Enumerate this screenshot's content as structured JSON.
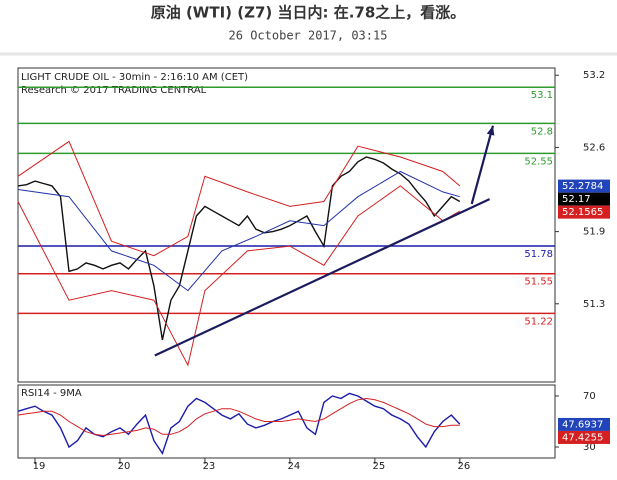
{
  "chart_data": [
    {
      "type": "line",
      "title": "原油 (WTI) (Z7) 当日内: 在.78之上，看涨。",
      "subtitle": "26 October 2017, 03:15",
      "labels": [
        "LIGHT CRUDE OIL - 30min - 2:16:10 AM (CET)",
        "Research © 2017 TRADING CENTRAL"
      ],
      "x": [
        -0.2,
        -0.1,
        0,
        0.1,
        0.2,
        0.3,
        0.4,
        0.5,
        0.6,
        0.7,
        0.8,
        0.9,
        1,
        1.1,
        1.2,
        1.3,
        1.4,
        1.5,
        1.6,
        1.7,
        1.8,
        1.9,
        2,
        2.1,
        2.2,
        2.3,
        2.4,
        2.5,
        2.6,
        2.7,
        2.8,
        2.9,
        3,
        3.1,
        3.2,
        3.3,
        3.4,
        3.5,
        3.6,
        3.7,
        3.8,
        3.9,
        4,
        4.1,
        4.2,
        4.3,
        4.4,
        4.5,
        4.6,
        4.7,
        4.8,
        4.9,
        5
      ],
      "series": [
        {
          "color": "#111111",
          "values": [
            52.28,
            52.29,
            52.32,
            52.3,
            52.28,
            52.19,
            51.57,
            51.59,
            51.64,
            51.62,
            51.59,
            51.62,
            51.64,
            51.59,
            51.67,
            51.74,
            51.45,
            51.0,
            51.33,
            51.45,
            51.74,
            52.03,
            52.11,
            52.07,
            52.03,
            51.99,
            51.95,
            52.03,
            51.92,
            51.89,
            51.9,
            51.92,
            51.95,
            51.99,
            52.03,
            51.9,
            51.78,
            52.28,
            52.36,
            52.4,
            52.48,
            52.52,
            52.5,
            52.47,
            52.42,
            52.38,
            52.32,
            52.23,
            52.15,
            52.03,
            52.11,
            52.19,
            52.15
          ]
        },
        {
          "color": "#d42020",
          "x": [
            -0.2,
            0.4,
            0.9,
            1.4,
            1.8,
            2,
            2.5,
            3,
            3.4,
            3.8,
            4.3,
            4.8,
            5
          ],
          "values": [
            52.36,
            52.65,
            51.82,
            51.7,
            51.86,
            52.36,
            52.23,
            52.11,
            52.15,
            52.61,
            52.52,
            52.4,
            52.28
          ]
        },
        {
          "color": "#d42020",
          "x": [
            -0.2,
            0.4,
            0.9,
            1.4,
            1.8,
            2,
            2.5,
            3,
            3.4,
            3.8,
            4.3,
            4.8,
            5
          ],
          "values": [
            52.15,
            51.33,
            51.41,
            51.33,
            50.79,
            51.41,
            51.74,
            51.78,
            51.62,
            52.03,
            52.28,
            51.99,
            52.07
          ]
        },
        {
          "color": "#2233aa",
          "x": [
            -0.2,
            0.4,
            0.9,
            1.4,
            1.8,
            2.2,
            2.6,
            3,
            3.4,
            3.8,
            4.3,
            4.8,
            5
          ],
          "values": [
            52.25,
            52.19,
            51.74,
            51.62,
            51.41,
            51.74,
            51.86,
            51.99,
            51.95,
            52.19,
            52.4,
            52.23,
            52.19
          ]
        }
      ],
      "levels": [
        {
          "value": 53.1,
          "color": "#2e9b2e"
        },
        {
          "value": 52.8,
          "color": "#2e9b2e"
        },
        {
          "value": 52.55,
          "color": "#2e9b2e"
        },
        {
          "value": 51.78,
          "color": "#1c1caa"
        },
        {
          "value": 51.55,
          "color": "#d42020"
        },
        {
          "value": 51.22,
          "color": "#d42020"
        }
      ],
      "trendline": {
        "color": "#1b1b5e",
        "x": [
          1.41,
          5.35
        ],
        "values": [
          50.87,
          52.17
        ]
      },
      "arrow": {
        "color": "#1b1b5e",
        "x": [
          5.14,
          5.39
        ],
        "values": [
          52.13,
          52.78
        ]
      },
      "last_values": [
        {
          "value": 52.2784,
          "color": "#2244bb"
        },
        {
          "value": 52.17,
          "color": "#000000"
        },
        {
          "value": 52.1565,
          "color": "#d42020"
        }
      ],
      "xlim": [
        -0.2,
        6.12
      ],
      "xticks": [
        {
          "value": 0,
          "label": "19"
        },
        {
          "value": 1,
          "label": "20"
        },
        {
          "value": 2,
          "label": "23"
        },
        {
          "value": 3,
          "label": "24"
        },
        {
          "value": 4,
          "label": "25"
        },
        {
          "value": 5,
          "label": "26"
        }
      ],
      "ylim": [
        50.65,
        53.26
      ],
      "yticks": [
        53.2,
        52.6,
        51.9,
        51.3
      ]
    },
    {
      "type": "line",
      "title": "RSI14 - 9MA",
      "x": [
        -0.2,
        -0.1,
        0,
        0.1,
        0.2,
        0.3,
        0.4,
        0.5,
        0.6,
        0.7,
        0.8,
        0.9,
        1,
        1.1,
        1.2,
        1.3,
        1.4,
        1.5,
        1.6,
        1.7,
        1.8,
        1.9,
        2,
        2.1,
        2.2,
        2.3,
        2.4,
        2.5,
        2.6,
        2.7,
        2.8,
        2.9,
        3,
        3.1,
        3.2,
        3.3,
        3.4,
        3.5,
        3.6,
        3.7,
        3.8,
        3.9,
        4,
        4.1,
        4.2,
        4.3,
        4.4,
        4.5,
        4.6,
        4.7,
        4.8,
        4.9,
        5
      ],
      "series": [
        {
          "color": "#1c1caa",
          "values": [
            58,
            60,
            62,
            58,
            55,
            45,
            30,
            35,
            45,
            40,
            38,
            42,
            45,
            40,
            48,
            55,
            35,
            25,
            45,
            50,
            62,
            68,
            65,
            60,
            55,
            52,
            56,
            48,
            45,
            47,
            50,
            52,
            55,
            58,
            45,
            40,
            65,
            70,
            68,
            72,
            70,
            66,
            62,
            60,
            55,
            52,
            48,
            38,
            30,
            42,
            50,
            55,
            48
          ]
        },
        {
          "color": "#d42020",
          "values": [
            55,
            56,
            57,
            58,
            58,
            55,
            50,
            46,
            42,
            40,
            39,
            40,
            41,
            42,
            43,
            45,
            44,
            40,
            40,
            42,
            46,
            52,
            56,
            58,
            60,
            60,
            58,
            55,
            52,
            50,
            50,
            50,
            51,
            52,
            51,
            50,
            52,
            56,
            60,
            64,
            67,
            68,
            67,
            65,
            62,
            59,
            56,
            52,
            48,
            46,
            46,
            47,
            47
          ]
        }
      ],
      "last_values": [
        {
          "value": 47.6937,
          "color": "#2244bb"
        },
        {
          "value": 47.4255,
          "color": "#d42020"
        }
      ],
      "xlim": [
        -0.2,
        6.12
      ],
      "ylim": [
        21.4,
        78.6
      ],
      "yticks": [
        70,
        30
      ]
    }
  ]
}
